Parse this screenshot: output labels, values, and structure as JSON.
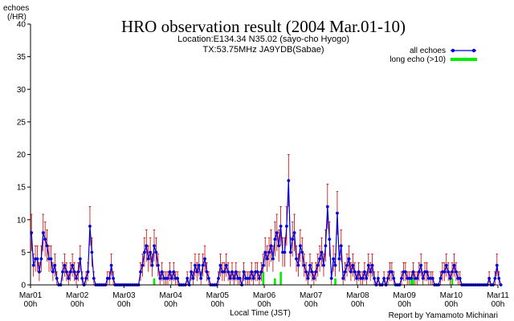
{
  "chart_data": {
    "type": "line",
    "title": "HRO observation result (2004 Mar.01-10)",
    "subtitle_lines": [
      "Location:E134.34 N35.02 (sayo-cho Hyogo)",
      "TX:53.75MHz JA9YDB(Sabae)"
    ],
    "ylabel_lines": [
      "echoes",
      "(/HR)"
    ],
    "xlabel": "Local Time (JST)",
    "credit": "Report by Yamamoto Michinari",
    "ylim": [
      0,
      40
    ],
    "y_ticks": [
      0,
      5,
      10,
      15,
      20,
      25,
      30,
      35,
      40
    ],
    "x_range_hours": [
      0,
      240
    ],
    "x_ticks": [
      {
        "day": "Mar01",
        "hour": "00h"
      },
      {
        "day": "Mar02",
        "hour": "00h"
      },
      {
        "day": "Mar03",
        "hour": "00h"
      },
      {
        "day": "Mar04",
        "hour": "00h"
      },
      {
        "day": "Mar05",
        "hour": "00h"
      },
      {
        "day": "Mar06",
        "hour": "00h"
      },
      {
        "day": "Mar07",
        "hour": "00h"
      },
      {
        "day": "Mar08",
        "hour": "00h"
      },
      {
        "day": "Mar09",
        "hour": "00h"
      },
      {
        "day": "Mar10",
        "hour": "00h"
      },
      {
        "day": "Mar11",
        "hour": "00h"
      }
    ],
    "grid": false,
    "legend_position": "top-right",
    "colors": {
      "all_echoes": "#0000dd",
      "long_echo": "#00ee00",
      "error_bars": "#cc0000",
      "axes": "#000000"
    },
    "series": [
      {
        "name": "all echoes",
        "values": [
          8,
          3,
          4,
          4,
          2,
          4,
          8,
          7,
          6,
          4,
          4,
          2,
          3,
          1,
          0,
          0,
          2,
          3,
          2,
          1,
          2,
          3,
          2,
          1,
          2,
          4,
          1,
          0,
          1,
          2,
          9,
          5,
          1,
          0,
          0,
          0,
          0,
          0,
          0,
          1,
          1,
          3,
          1,
          0,
          0,
          0,
          0,
          0,
          0,
          0,
          0,
          0,
          0,
          0,
          0,
          0,
          2,
          3,
          5,
          6,
          4,
          5,
          3,
          6,
          5,
          3,
          1,
          2,
          1,
          1,
          1,
          2,
          1,
          2,
          1,
          1,
          0,
          0,
          0,
          0,
          1,
          0,
          2,
          1,
          3,
          2,
          3,
          1,
          3,
          4,
          2,
          1,
          0,
          0,
          0,
          0,
          1,
          3,
          2,
          2,
          3,
          2,
          1,
          2,
          1,
          2,
          1,
          1,
          0,
          2,
          1,
          1,
          1,
          2,
          1,
          2,
          2,
          1,
          2,
          3,
          5,
          4,
          5,
          6,
          4,
          7,
          8,
          6,
          9,
          5,
          5,
          9,
          16,
          5,
          7,
          8,
          4,
          3,
          6,
          5,
          3,
          2,
          1,
          3,
          2,
          1,
          2,
          3,
          4,
          5,
          3,
          6,
          12,
          7,
          1,
          4,
          3,
          11,
          4,
          6,
          1,
          2,
          3,
          4,
          2,
          3,
          2,
          1,
          2,
          1,
          1,
          2,
          1,
          3,
          2,
          3,
          1,
          0,
          1,
          0,
          0,
          1,
          0,
          1,
          2,
          2,
          1,
          0,
          0,
          0,
          1,
          2,
          2,
          1,
          1,
          1,
          2,
          1,
          1,
          2,
          3,
          1,
          2,
          2,
          1,
          1,
          1,
          0,
          0,
          0,
          1,
          2,
          2,
          3,
          2,
          1,
          2,
          3,
          2,
          1,
          1,
          0,
          0,
          0,
          0,
          0,
          0,
          0,
          0,
          0,
          0,
          0,
          0,
          0,
          0,
          1,
          0,
          0,
          1,
          3,
          1,
          0
        ],
        "marker": "dot"
      },
      {
        "name": "long echo (>10)",
        "values": [
          0,
          0,
          0,
          0,
          0,
          0,
          0,
          0,
          0,
          0,
          0,
          0,
          0,
          0,
          0,
          0,
          0,
          0,
          0,
          0,
          0,
          0,
          0,
          0,
          0,
          0,
          0,
          0,
          0,
          0,
          0,
          0,
          0,
          0,
          0,
          0,
          0,
          0,
          0,
          0,
          0,
          0,
          0,
          0,
          0,
          0,
          0,
          0,
          0,
          0,
          0,
          0,
          0,
          0,
          0,
          0,
          0,
          0,
          0,
          0,
          0,
          0,
          0,
          1,
          0,
          0,
          0,
          0,
          0,
          0,
          0,
          0,
          0,
          0,
          0,
          0,
          0,
          0,
          0,
          0,
          0,
          0,
          0,
          0,
          0,
          0,
          0,
          0,
          0,
          0,
          0,
          0,
          0,
          0,
          0,
          0,
          0,
          0,
          0,
          0,
          0,
          0,
          0,
          0,
          0,
          0,
          0,
          0,
          0,
          0,
          0,
          0,
          0,
          0,
          0,
          0,
          0,
          0,
          0,
          2,
          0,
          0,
          0,
          0,
          0,
          1,
          0,
          0,
          2,
          0,
          0,
          0,
          0,
          0,
          0,
          0,
          0,
          0,
          0,
          0,
          0,
          0,
          0,
          0,
          0,
          0,
          0,
          0,
          0,
          0,
          0,
          0,
          0,
          0,
          0,
          0,
          1,
          0,
          0,
          0,
          0,
          0,
          0,
          0,
          0,
          0,
          0,
          0,
          0,
          0,
          0,
          0,
          0,
          0,
          0,
          0,
          0,
          0,
          0,
          0,
          0,
          0,
          0,
          0,
          0,
          0,
          0,
          0,
          0,
          0,
          0,
          0,
          0,
          0,
          0,
          1,
          1,
          0,
          0,
          0,
          0,
          0,
          0,
          0,
          0,
          0,
          0,
          0,
          0,
          0,
          0,
          0,
          0,
          0,
          0,
          0,
          1,
          0,
          0,
          0,
          0,
          0,
          0,
          0,
          0,
          0,
          0,
          0,
          0,
          0,
          0,
          0,
          0,
          0,
          0,
          0,
          0,
          0,
          0,
          0,
          0,
          0,
          0,
          0,
          0,
          0,
          0,
          0,
          0,
          0
        ],
        "marker": "bar"
      }
    ]
  }
}
